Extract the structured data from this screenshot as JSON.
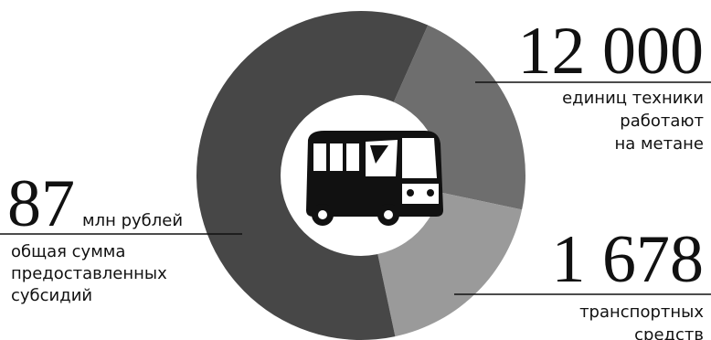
{
  "left": {
    "number": "87",
    "unit": "млн рублей",
    "lines": [
      "общая сумма",
      "предоставленных",
      "субсидий"
    ]
  },
  "top_right": {
    "number": "12 000",
    "lines": [
      "единиц техники",
      "работают",
      "на метане"
    ]
  },
  "bottom_right": {
    "number": "1 678",
    "lines": [
      "транспортных",
      "средств"
    ]
  }
}
